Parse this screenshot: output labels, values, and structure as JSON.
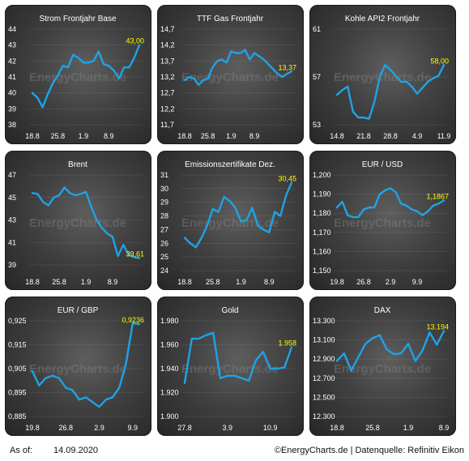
{
  "colors": {
    "line": "#1ea3e6",
    "last_value": "#ffff00",
    "text": "#ffffff",
    "grid": "#8a8a8a"
  },
  "watermark": "EnergyCharts.de",
  "footer": {
    "as_of_label": "As of:",
    "as_of_date": "14.09.2020",
    "source": "©EnergyCharts.de | Datenquelle: Refinitiv Eikon"
  },
  "chart_data": [
    {
      "type": "line",
      "title": "Strom Frontjahr Base",
      "yticks": [
        "44",
        "43",
        "42",
        "41",
        "40",
        "39",
        "38"
      ],
      "ylim": [
        38,
        44
      ],
      "xticks": [
        "18.8",
        "25.8",
        "1.9",
        "8.9"
      ],
      "xtick_pos": [
        0,
        5,
        10,
        15
      ],
      "last_label": "43,00",
      "values": [
        40.0,
        39.7,
        39.1,
        39.9,
        40.6,
        41.1,
        41.7,
        41.6,
        42.4,
        42.2,
        41.9,
        41.9,
        42.0,
        42.6,
        41.8,
        41.7,
        41.4,
        40.9,
        41.6,
        41.6,
        42.2,
        43.0
      ]
    },
    {
      "type": "line",
      "title": "TTF Gas Frontjahr",
      "yticks": [
        "14,7",
        "14,2",
        "13,7",
        "13,2",
        "12,7",
        "12,2",
        "11,7"
      ],
      "ylim": [
        11.7,
        14.7
      ],
      "xticks": [
        "18.8",
        "25.8",
        "1.9",
        "8.9"
      ],
      "xtick_pos": [
        0,
        5,
        10,
        15
      ],
      "last_label": "13,37",
      "values": [
        13.1,
        13.2,
        13.15,
        12.95,
        13.1,
        13.15,
        13.5,
        13.7,
        13.75,
        13.65,
        14.0,
        13.95,
        13.95,
        14.05,
        13.75,
        13.95,
        13.85,
        13.75,
        13.6,
        13.45,
        13.3,
        13.2,
        13.3,
        13.37
      ]
    },
    {
      "type": "line",
      "title": "Kohle API2 Frontjahr",
      "yticks": [
        "61",
        "57",
        "53"
      ],
      "ylim": [
        53,
        61
      ],
      "xticks": [
        "14.8",
        "21.8",
        "28.8",
        "4.9",
        "11.9"
      ],
      "xtick_pos": [
        0,
        5,
        10,
        15,
        20
      ],
      "last_label": "58,00",
      "values": [
        55.5,
        55.9,
        56.2,
        54.1,
        53.6,
        53.6,
        53.5,
        54.9,
        57.0,
        58.0,
        57.6,
        57.1,
        56.6,
        56.6,
        56.2,
        55.6,
        56.1,
        56.6,
        56.9,
        57.1,
        58.0
      ]
    },
    {
      "type": "line",
      "title": "Brent",
      "yticks": [
        "47",
        "45",
        "43",
        "41",
        "39"
      ],
      "ylim": [
        38.5,
        47
      ],
      "xticks": [
        "18.8",
        "25.8",
        "1.9",
        "8.9"
      ],
      "xtick_pos": [
        0,
        5,
        10,
        15
      ],
      "last_label": "39,61",
      "values": [
        45.4,
        45.3,
        44.6,
        44.3,
        45.0,
        45.2,
        45.9,
        45.4,
        45.2,
        45.3,
        45.5,
        44.2,
        43.0,
        42.3,
        41.8,
        41.5,
        39.8,
        40.8,
        39.9,
        39.7,
        39.61
      ]
    },
    {
      "type": "line",
      "title": "Emissionszertifikate Dez.",
      "yticks": [
        "31",
        "30",
        "29",
        "28",
        "27",
        "26",
        "25",
        "24"
      ],
      "ylim": [
        24,
        31
      ],
      "xticks": [
        "18.8",
        "25.8",
        "1.9",
        "8.9"
      ],
      "xtick_pos": [
        0,
        5,
        10,
        15
      ],
      "last_label": "30,45",
      "values": [
        26.4,
        26.0,
        25.7,
        26.4,
        27.3,
        28.5,
        28.3,
        29.4,
        29.1,
        28.6,
        27.6,
        27.7,
        28.6,
        27.3,
        27.0,
        26.8,
        28.3,
        28.0,
        29.5,
        30.45
      ]
    },
    {
      "type": "line",
      "title": "EUR / USD",
      "yticks": [
        "1,200",
        "1,190",
        "1,180",
        "1,170",
        "1,160",
        "1,150"
      ],
      "ylim": [
        1.15,
        1.2
      ],
      "xticks": [
        "19.8",
        "26.8",
        "2.9",
        "9.9"
      ],
      "xtick_pos": [
        0,
        5,
        10,
        15
      ],
      "last_label": "1,1867",
      "values": [
        1.183,
        1.186,
        1.179,
        1.178,
        1.178,
        1.182,
        1.183,
        1.183,
        1.19,
        1.192,
        1.193,
        1.191,
        1.185,
        1.184,
        1.182,
        1.181,
        1.179,
        1.181,
        1.184,
        1.185,
        1.1867
      ]
    },
    {
      "type": "line",
      "title": "EUR / GBP",
      "yticks": [
        "0,925",
        "0,915",
        "0,905",
        "0,895",
        "0,885"
      ],
      "ylim": [
        0.885,
        0.925
      ],
      "xticks": [
        "19.8",
        "26.8",
        "2.9",
        "9.9"
      ],
      "xtick_pos": [
        0,
        5,
        10,
        15
      ],
      "last_label": "0,9236",
      "values": [
        0.904,
        0.898,
        0.901,
        0.902,
        0.901,
        0.897,
        0.896,
        0.892,
        0.893,
        0.891,
        0.889,
        0.892,
        0.893,
        0.897,
        0.907,
        0.924,
        0.9236
      ]
    },
    {
      "type": "line",
      "title": "Gold",
      "yticks": [
        "1.980",
        "1.960",
        "1.940",
        "1.920",
        "1.900"
      ],
      "ylim": [
        1900,
        1980
      ],
      "xticks": [
        "27.8",
        "3.9",
        "10.9"
      ],
      "xtick_pos": [
        0,
        6,
        12
      ],
      "last_label": "1.958",
      "values": [
        1928,
        1965,
        1965,
        1968,
        1970,
        1932,
        1934,
        1934,
        1932,
        1930,
        1947,
        1954,
        1940,
        1940,
        1941,
        1958
      ]
    },
    {
      "type": "line",
      "title": "DAX",
      "yticks": [
        "13.300",
        "13.100",
        "12.900",
        "12.700",
        "12.500",
        "12.300"
      ],
      "ylim": [
        12300,
        13300
      ],
      "xticks": [
        "18.8",
        "25.8",
        "1.9",
        "8.9"
      ],
      "xtick_pos": [
        0,
        5,
        10,
        15
      ],
      "last_label": "13.194",
      "values": [
        12880,
        12960,
        12780,
        12920,
        13060,
        13120,
        13150,
        13000,
        12950,
        12960,
        13060,
        12880,
        12990,
        13180,
        13050,
        13194
      ]
    }
  ]
}
